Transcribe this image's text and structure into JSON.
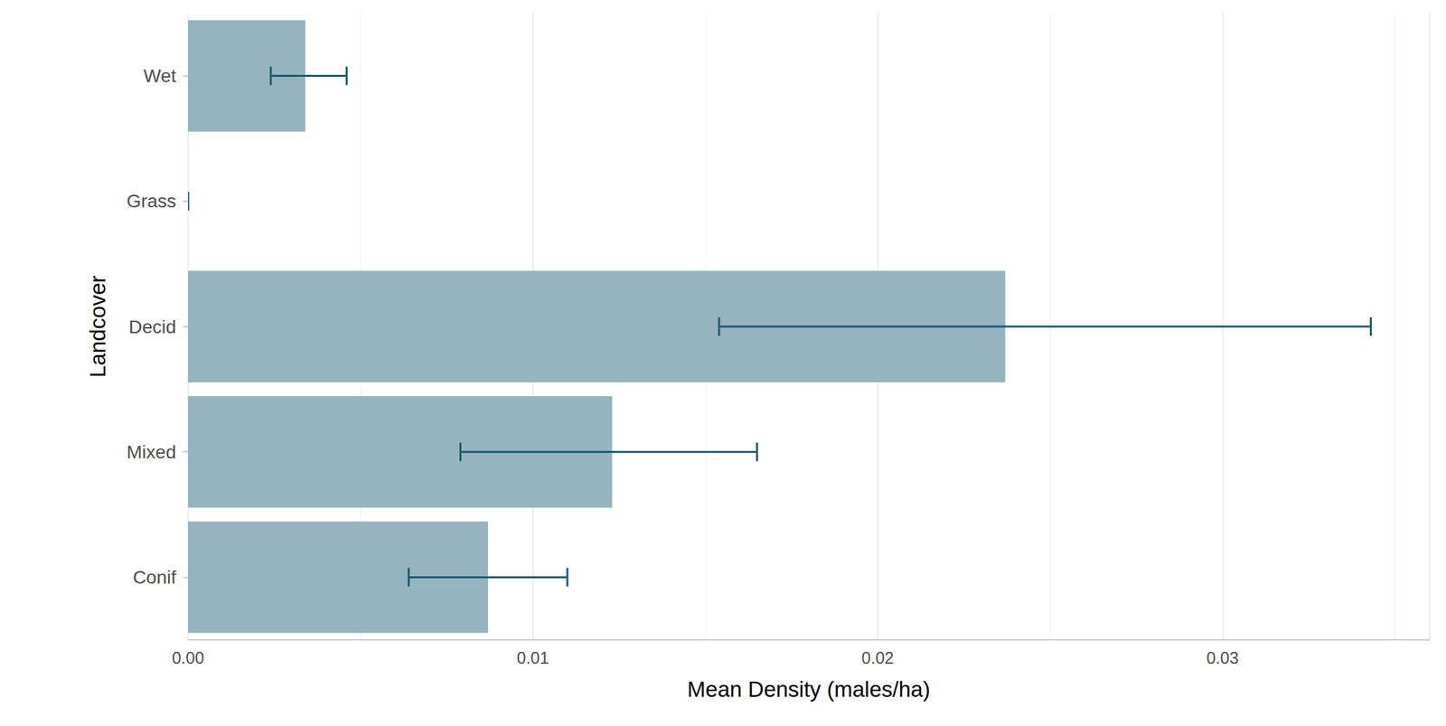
{
  "chart_data": {
    "type": "bar",
    "orientation": "horizontal",
    "x_label": "Mean Density (males/ha)",
    "y_label": "Landcover",
    "categories": [
      "Conif",
      "Mixed",
      "Decid",
      "Grass",
      "Wet"
    ],
    "values": [
      0.0087,
      0.0123,
      0.0237,
      0,
      0.0034
    ],
    "error_low": [
      0.0064,
      0.0079,
      0.0154,
      0,
      0.0024
    ],
    "error_high": [
      0.011,
      0.0165,
      0.0343,
      0,
      0.0046
    ],
    "color": "#96b4bf",
    "error_color": "#1a5a6e",
    "xlim": [
      0,
      0.036
    ],
    "xticks": [
      {
        "value": 0,
        "label": "0.00"
      },
      0.01,
      0.02,
      0.03
    ],
    "grid": true
  }
}
